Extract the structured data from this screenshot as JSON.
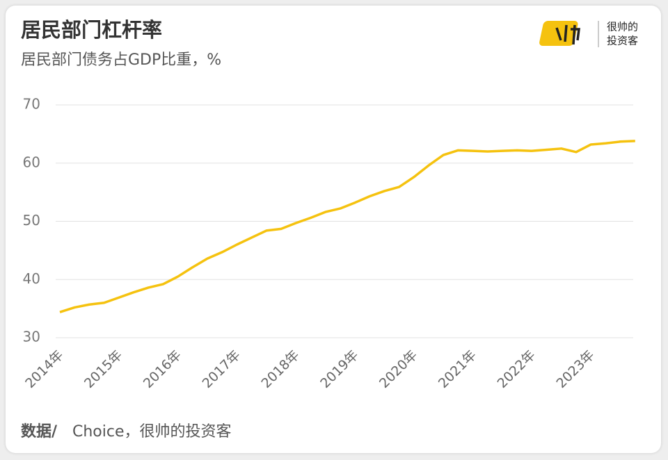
{
  "header": {
    "logo_text": [
      "很帅的",
      "投资客"
    ]
  },
  "chart_data": {
    "type": "line",
    "title": "居民部门杠杆率",
    "subtitle": "居民部门债务占GDP比重，%",
    "categories": [
      "2014年",
      null,
      null,
      null,
      "2015年",
      null,
      null,
      null,
      "2016年",
      null,
      null,
      null,
      "2017年",
      null,
      null,
      null,
      "2018年",
      null,
      null,
      null,
      "2019年",
      null,
      null,
      null,
      "2020年",
      null,
      null,
      null,
      "2021年",
      null,
      null,
      null,
      "2022年",
      null,
      null,
      null,
      "2023年",
      null,
      null,
      null
    ],
    "series": [
      {
        "name": "居民部门杠杆率",
        "color": "#f5c20f",
        "values": [
          34.4,
          35.2,
          35.7,
          36.0,
          36.9,
          37.8,
          38.6,
          39.2,
          40.5,
          42.1,
          43.6,
          44.7,
          46.0,
          47.2,
          48.4,
          48.7,
          49.7,
          50.6,
          51.6,
          52.2,
          53.2,
          54.3,
          55.2,
          55.9,
          57.6,
          59.6,
          61.4,
          62.2,
          62.1,
          62.0,
          62.1,
          62.2,
          62.1,
          62.3,
          62.5,
          61.9,
          63.2,
          63.4,
          63.7,
          63.8
        ]
      }
    ],
    "ylim": [
      30,
      70
    ],
    "yticks": [
      30,
      40,
      50,
      60,
      70
    ],
    "grid": true
  },
  "footer": {
    "source_label": "数据/",
    "source": "Choice，很帅的投资客"
  }
}
